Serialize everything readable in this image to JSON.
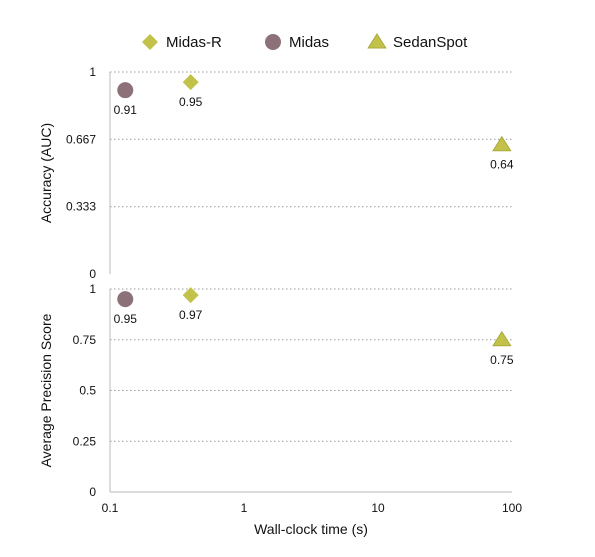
{
  "chart_data": {
    "type": "scatter",
    "x_scale": "log",
    "xlabel": "Wall-clock time (s)",
    "x_ticks": [
      "0.1",
      "1",
      "10",
      "100"
    ],
    "xlim": [
      0.1,
      100
    ],
    "legend_position": "top",
    "series_styles": [
      {
        "name": "Midas-R",
        "marker": "diamond",
        "color": "#c2c24a"
      },
      {
        "name": "Midas",
        "marker": "circle",
        "color": "#8c7179"
      },
      {
        "name": "SedanSpot",
        "marker": "triangle",
        "color": "#c2c24a"
      }
    ],
    "panels": [
      {
        "ylabel": "Accuracy (AUC)",
        "ylim": [
          0,
          1
        ],
        "y_ticks": [
          "0",
          "0.333",
          "0.667",
          "1"
        ],
        "grid": "horizontal-dotted",
        "points": [
          {
            "series": "Midas",
            "x": 0.13,
            "y": 0.91,
            "label": "0.91"
          },
          {
            "series": "Midas-R",
            "x": 0.4,
            "y": 0.95,
            "label": "0.95"
          },
          {
            "series": "SedanSpot",
            "x": 84,
            "y": 0.64,
            "label": "0.64"
          }
        ]
      },
      {
        "ylabel": "Average Precision Score",
        "ylim": [
          0,
          1
        ],
        "y_ticks": [
          "0",
          "0.25",
          "0.5",
          "0.75",
          "1"
        ],
        "grid": "horizontal-dotted",
        "points": [
          {
            "series": "Midas",
            "x": 0.13,
            "y": 0.95,
            "label": "0.95"
          },
          {
            "series": "Midas-R",
            "x": 0.4,
            "y": 0.97,
            "label": "0.97"
          },
          {
            "series": "SedanSpot",
            "x": 84,
            "y": 0.75,
            "label": "0.75"
          }
        ]
      }
    ]
  }
}
